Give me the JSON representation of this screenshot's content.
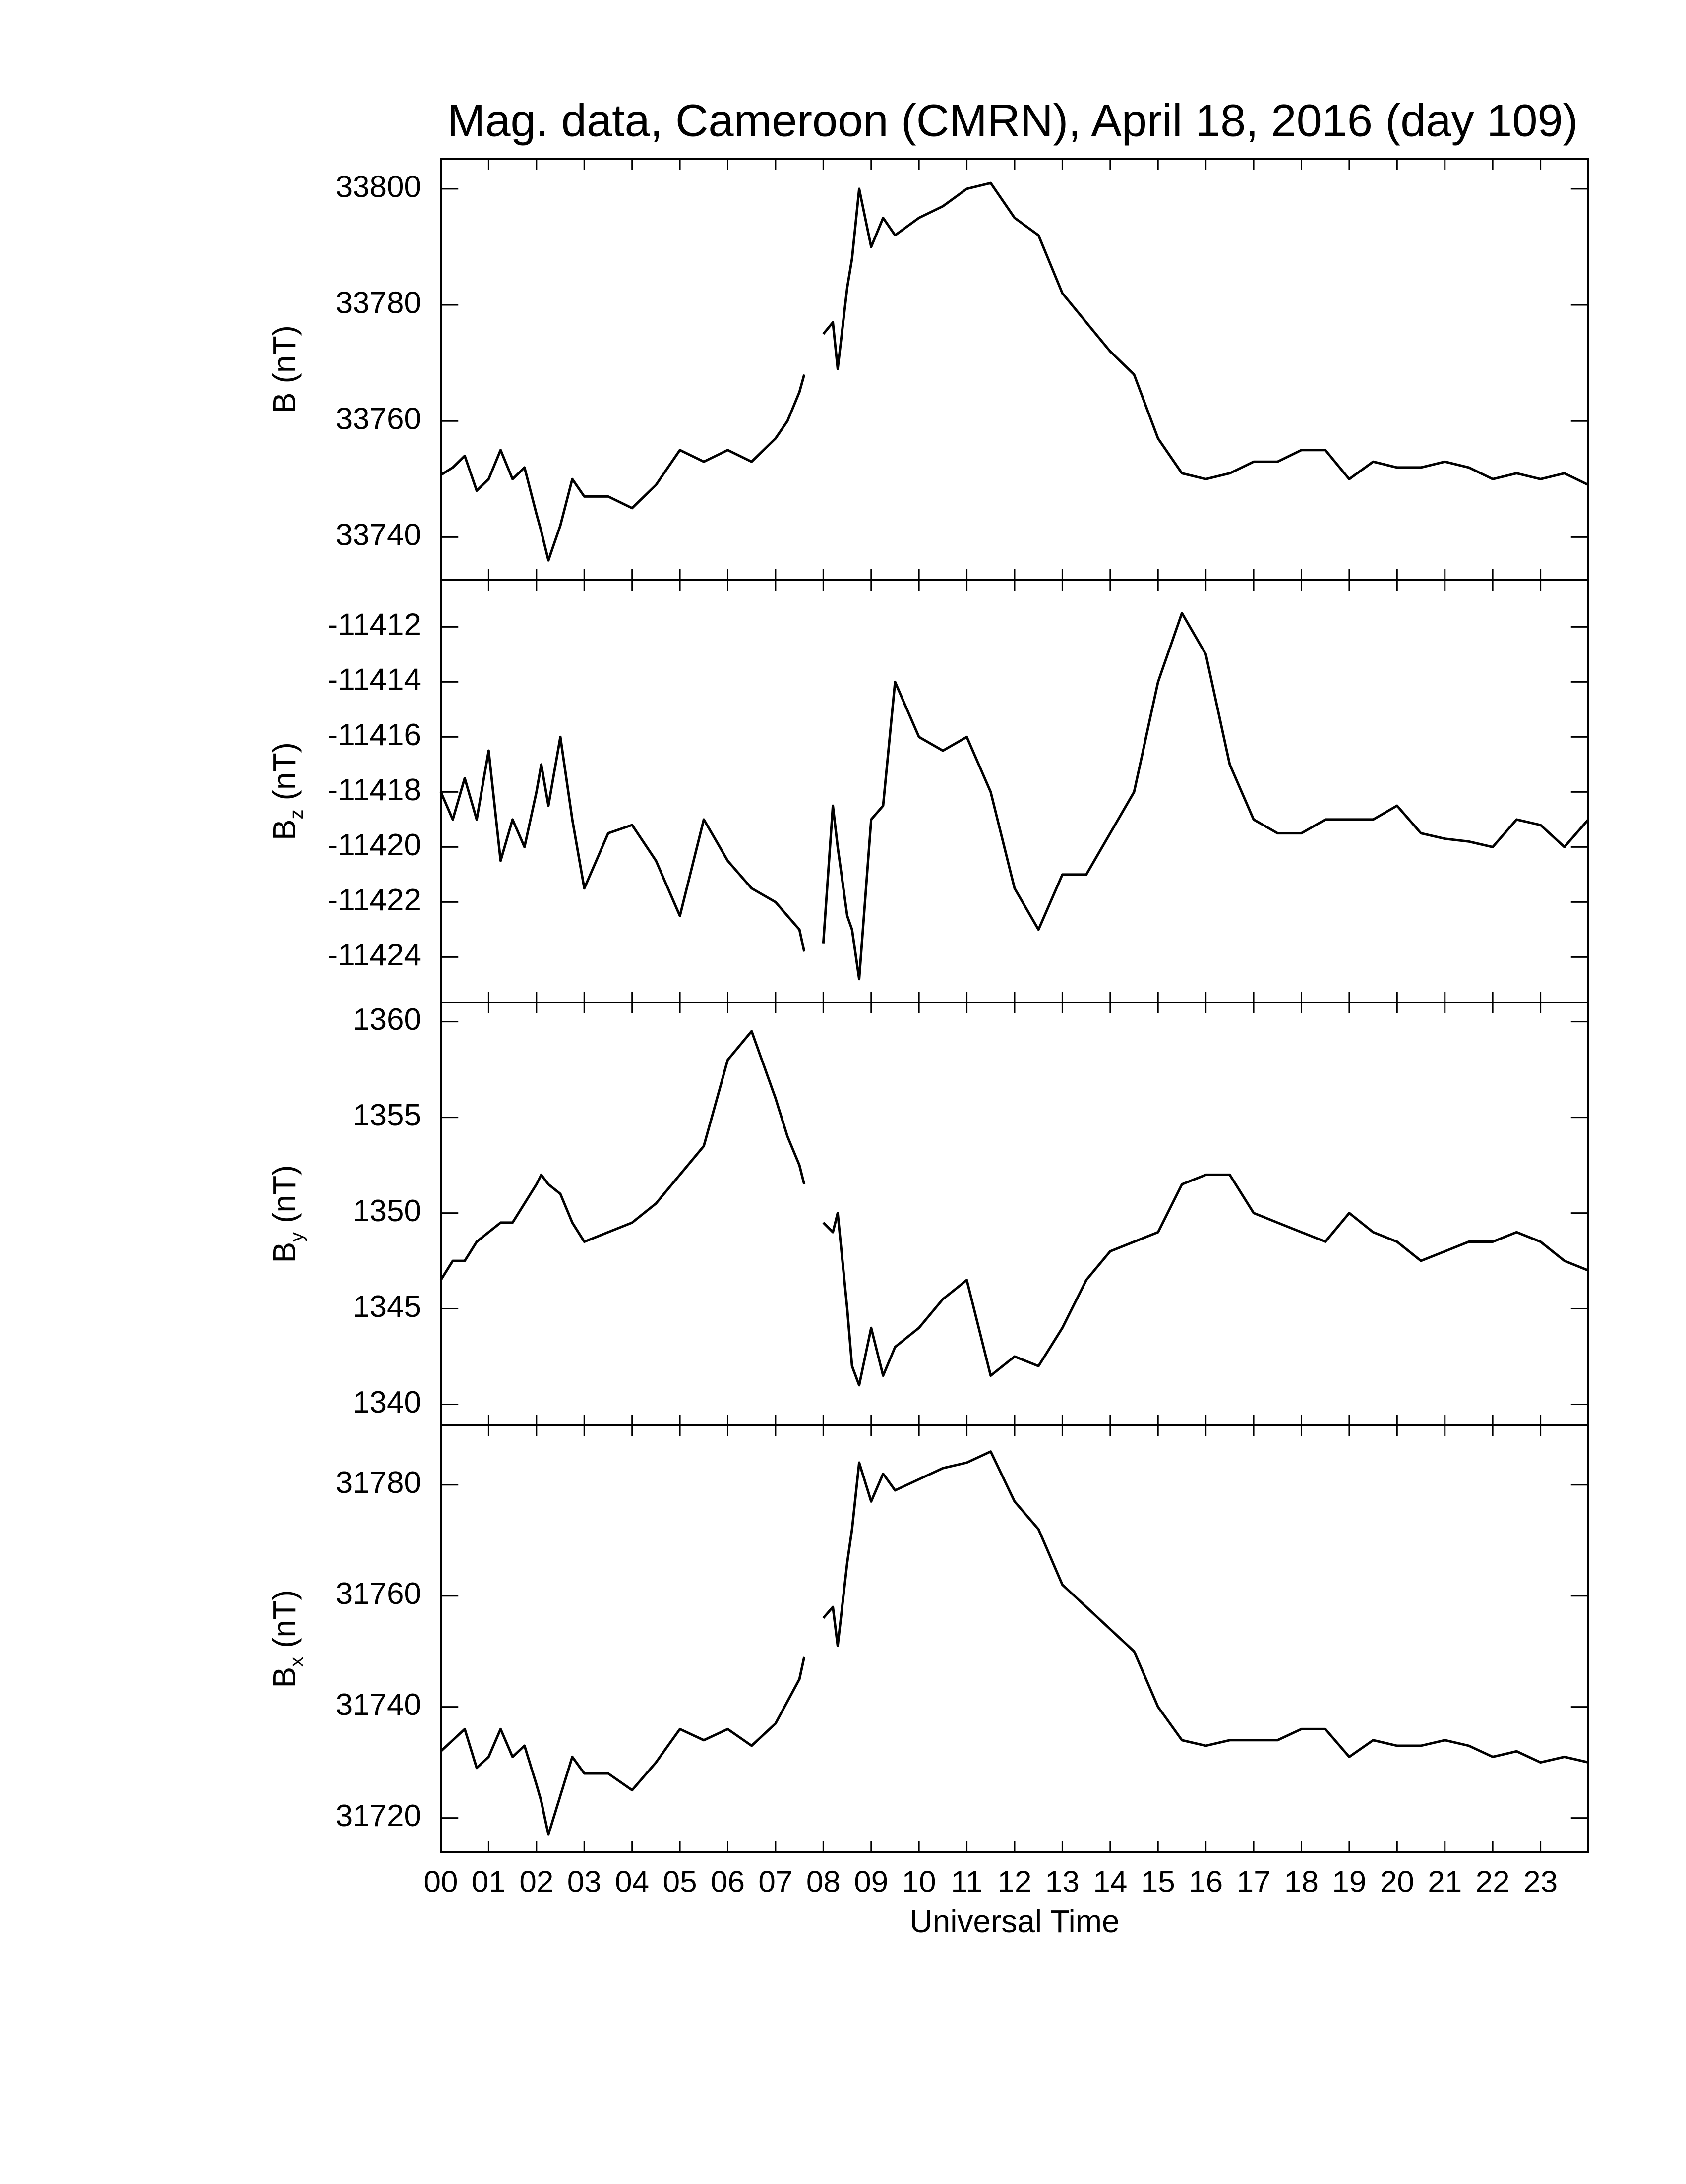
{
  "chart_data": {
    "type": "line",
    "title": "Mag. data, Cameroon (CMRN), April 18, 2016 (day 109)",
    "xlabel": "Universal Time",
    "xlim": [
      0,
      24
    ],
    "xticks": [
      {
        "value": 0,
        "label": "00"
      },
      {
        "value": 1,
        "label": "01"
      },
      {
        "value": 2,
        "label": "02"
      },
      {
        "value": 3,
        "label": "03"
      },
      {
        "value": 4,
        "label": "04"
      },
      {
        "value": 5,
        "label": "05"
      },
      {
        "value": 6,
        "label": "06"
      },
      {
        "value": 7,
        "label": "07"
      },
      {
        "value": 8,
        "label": "08"
      },
      {
        "value": 9,
        "label": "09"
      },
      {
        "value": 10,
        "label": "10"
      },
      {
        "value": 11,
        "label": "11"
      },
      {
        "value": 12,
        "label": "12"
      },
      {
        "value": 13,
        "label": "13"
      },
      {
        "value": 14,
        "label": "14"
      },
      {
        "value": 15,
        "label": "15"
      },
      {
        "value": 16,
        "label": "16"
      },
      {
        "value": 17,
        "label": "17"
      },
      {
        "value": 18,
        "label": "18"
      },
      {
        "value": 19,
        "label": "19"
      },
      {
        "value": 20,
        "label": "20"
      },
      {
        "value": 21,
        "label": "21"
      },
      {
        "value": 22,
        "label": "22"
      },
      {
        "value": 23,
        "label": "23"
      }
    ],
    "x": [
      0,
      0.25,
      0.5,
      0.75,
      1,
      1.25,
      1.5,
      1.75,
      2,
      2.1,
      2.25,
      2.5,
      2.75,
      3,
      3.5,
      4,
      4.5,
      5,
      5.5,
      6,
      6.5,
      7,
      7.25,
      7.5,
      7.6,
      7.8,
      8.0,
      8.2,
      8.3,
      8.5,
      8.6,
      8.75,
      9,
      9.25,
      9.5,
      10,
      10.5,
      11,
      11.5,
      12,
      12.5,
      13,
      13.5,
      14,
      14.5,
      15,
      15.5,
      16,
      16.5,
      17,
      17.5,
      18,
      18.5,
      19,
      19.5,
      20,
      20.5,
      21,
      21.5,
      22,
      22.5,
      23,
      23.5,
      24
    ],
    "panels": [
      {
        "ylabel": {
          "symbol": "B",
          "unit": "(nT)"
        },
        "ylim": [
          33732.6,
          33805.2
        ],
        "yticks": [
          33740,
          33760,
          33780,
          33800
        ],
        "series": [
          {
            "color": "#000000",
            "values": [
              33750.7,
              33752,
              33754,
              33748,
              33750,
              33755,
              33750,
              33752,
              33744,
              33741,
              33736,
              33742,
              33750,
              33747,
              33747,
              33745,
              33749,
              33755,
              33753,
              33755,
              33753,
              33757,
              33760,
              33765,
              33768,
              null,
              33775,
              33777,
              33769,
              33783,
              33788,
              33800,
              33790,
              33795,
              33792,
              33795,
              33797,
              33800,
              33801,
              33795,
              33792,
              33782,
              33777,
              33772,
              33768,
              33757,
              33751,
              33750,
              33751,
              33753,
              33753,
              33755,
              33755,
              33750,
              33753,
              33752,
              33752,
              33753,
              33752,
              33750,
              33751,
              33750,
              33751,
              33749
            ]
          }
        ]
      },
      {
        "ylabel": {
          "symbol": "B",
          "subscript": "z",
          "unit": "(nT)"
        },
        "ylim": [
          -11425.65,
          -11410.3
        ],
        "yticks": [
          -11424,
          -11422,
          -11420,
          -11418,
          -11416,
          -11414,
          -11412
        ],
        "series": [
          {
            "color": "#000000",
            "values": [
              -11418,
              -11419,
              -11417.5,
              -11419,
              -11416.5,
              -11420.5,
              -11419,
              -11420,
              -11418,
              -11417,
              -11418.5,
              -11416,
              -11419,
              -11421.5,
              -11419.5,
              -11419.2,
              -11420.5,
              -11422.5,
              -11419,
              -11420.5,
              -11421.5,
              -11422,
              -11422.5,
              -11423,
              -11423.8,
              null,
              -11423.5,
              -11418.5,
              -11420,
              -11422.5,
              -11423,
              -11424.8,
              -11419,
              -11418.5,
              -11414,
              -11416,
              -11416.5,
              -11416,
              -11418,
              -11421.5,
              -11423,
              -11421,
              -11421,
              -11419.5,
              -11418,
              -11414,
              -11411.5,
              -11413,
              -11417,
              -11419,
              -11419.5,
              -11419.5,
              -11419,
              -11419,
              -11419,
              -11418.5,
              -11419.5,
              -11419.7,
              -11419.8,
              -11420,
              -11419,
              -11419.2,
              -11420,
              -11419
            ]
          }
        ]
      },
      {
        "ylabel": {
          "symbol": "B",
          "subscript": "y",
          "unit": "(nT)"
        },
        "ylim": [
          1338.9,
          1361.0
        ],
        "yticks": [
          1340,
          1345,
          1350,
          1355,
          1360
        ],
        "series": [
          {
            "color": "#000000",
            "values": [
              1346.5,
              1347.5,
              1347.5,
              1348.5,
              1349,
              1349.5,
              1349.5,
              1350.5,
              1351.5,
              1352,
              1351.5,
              1351,
              1349.5,
              1348.5,
              1349,
              1349.5,
              1350.5,
              1352,
              1353.5,
              1358,
              1359.5,
              1356,
              1354,
              1352.5,
              1351.5,
              null,
              1349.5,
              1349,
              1350,
              1345,
              1342,
              1341,
              1344,
              1341.5,
              1343,
              1344,
              1345.5,
              1346.5,
              1341.5,
              1342.5,
              1342,
              1344,
              1346.5,
              1348,
              1348.5,
              1349,
              1351.5,
              1352,
              1352,
              1350,
              1349.5,
              1349,
              1348.5,
              1350,
              1349,
              1348.5,
              1347.5,
              1348,
              1348.5,
              1348.5,
              1349,
              1348.5,
              1347.5,
              1347
            ]
          }
        ]
      },
      {
        "ylabel": {
          "symbol": "B",
          "subscript": "x",
          "unit": "(nT)"
        },
        "ylim": [
          31713.8,
          31790.7
        ],
        "yticks": [
          31720,
          31740,
          31760,
          31780
        ],
        "series": [
          {
            "color": "#000000",
            "values": [
              31732,
              31734,
              31736,
              31729,
              31731,
              31736,
              31731,
              31733,
              31726,
              31723,
              31717,
              31724,
              31731,
              31728,
              31728,
              31725,
              31730,
              31736,
              31734,
              31736,
              31733,
              31737,
              31741,
              31745,
              31749,
              null,
              31756,
              31758,
              31751,
              31766,
              31772,
              31784,
              31777,
              31782,
              31779,
              31781,
              31783,
              31784,
              31786,
              31777,
              31772,
              31762,
              31758,
              31754,
              31750,
              31740,
              31734,
              31733,
              31734,
              31734,
              31734,
              31736,
              31736,
              31731,
              31734,
              31733,
              31733,
              31734,
              31733,
              31731,
              31732,
              31730,
              31731,
              31730
            ]
          }
        ]
      }
    ]
  }
}
